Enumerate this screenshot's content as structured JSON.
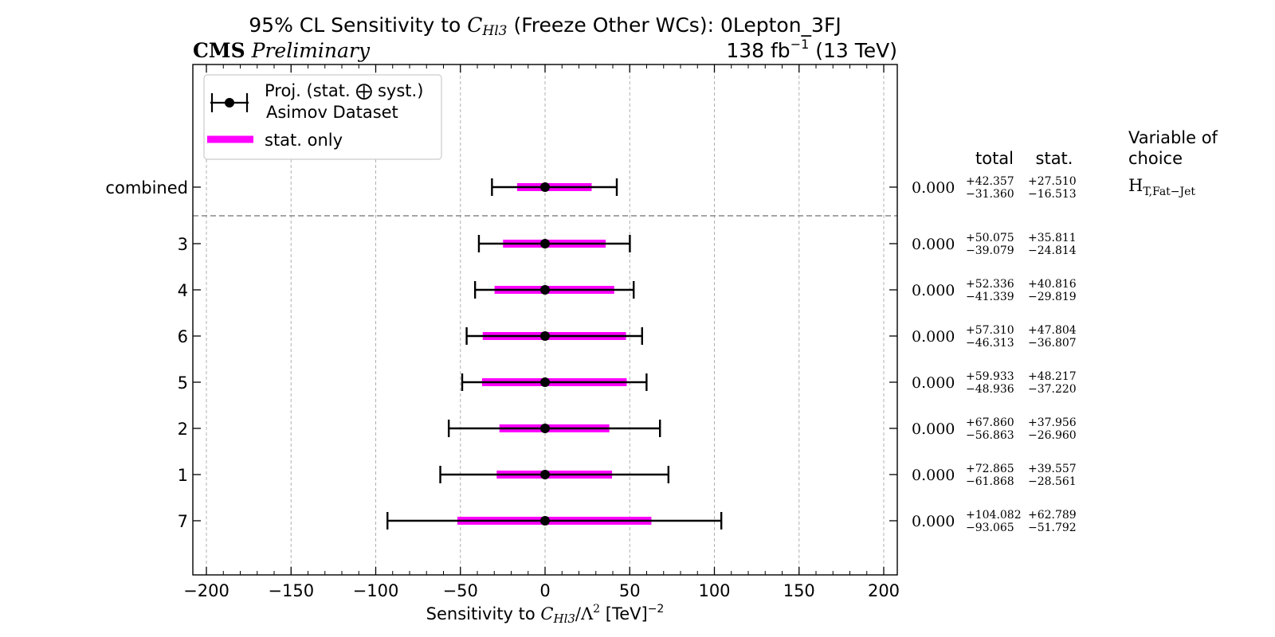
{
  "header": {
    "title_prefix": "95% CL Sensitivity to ",
    "title_var": "C",
    "title_var_sub": "Hl3",
    "title_suffix": " (Freeze Other WCs): 0Lepton_3FJ",
    "experiment": "CMS",
    "status": "Preliminary",
    "lumi": "138 fb",
    "lumi_sup": "−1",
    "energy": " (13 TeV)"
  },
  "legend": {
    "entry1_line1": "Proj. (stat. ⨁ syst.)",
    "entry1_line2": "Asimov Dataset",
    "entry2": "stat. only",
    "placement": "top-left"
  },
  "table": {
    "col_total": "total",
    "col_stat": "stat.",
    "col_var_line1": "Variable of",
    "col_var_line2": "choice",
    "variable": "H",
    "variable_sub": "T,Fat−Jet"
  },
  "colors": {
    "stat_band": "#ff00ff",
    "total_bar": "#000000",
    "grid": "#b0b0b0",
    "separator": "#888888"
  },
  "chart_data": {
    "type": "errorbar",
    "orientation": "horizontal",
    "xlabel_prefix": "Sensitivity to ",
    "xlabel_var": "C",
    "xlabel_var_sub": "Hl3",
    "xlabel_suffix": "/Λ",
    "xlabel_pow": "2",
    "xlabel_unit": " [TeV]",
    "xlabel_unit_pow": "−2",
    "xlim": [
      -208,
      208
    ],
    "xticks": [
      -200,
      -150,
      -100,
      -50,
      0,
      50,
      100,
      150,
      200
    ],
    "xtick_labels": [
      "−200",
      "−150",
      "−100",
      "−50",
      "0",
      "50",
      "100",
      "150",
      "200"
    ],
    "grid": true,
    "rows": [
      {
        "label": "combined",
        "central": "0.000",
        "value": 0,
        "total_up": 42.357,
        "total_down": -31.36,
        "stat_up": 27.51,
        "stat_down": -16.513,
        "total_up_text": "+42.357",
        "total_down_text": "−31.360",
        "stat_up_text": "+27.510",
        "stat_down_text": "−16.513"
      },
      {
        "label": "3",
        "central": "0.000",
        "value": 0,
        "total_up": 50.075,
        "total_down": -39.079,
        "stat_up": 35.811,
        "stat_down": -24.814,
        "total_up_text": "+50.075",
        "total_down_text": "−39.079",
        "stat_up_text": "+35.811",
        "stat_down_text": "−24.814"
      },
      {
        "label": "4",
        "central": "0.000",
        "value": 0,
        "total_up": 52.336,
        "total_down": -41.339,
        "stat_up": 40.816,
        "stat_down": -29.819,
        "total_up_text": "+52.336",
        "total_down_text": "−41.339",
        "stat_up_text": "+40.816",
        "stat_down_text": "−29.819"
      },
      {
        "label": "6",
        "central": "0.000",
        "value": 0,
        "total_up": 57.31,
        "total_down": -46.313,
        "stat_up": 47.804,
        "stat_down": -36.807,
        "total_up_text": "+57.310",
        "total_down_text": "−46.313",
        "stat_up_text": "+47.804",
        "stat_down_text": "−36.807"
      },
      {
        "label": "5",
        "central": "0.000",
        "value": 0,
        "total_up": 59.933,
        "total_down": -48.936,
        "stat_up": 48.217,
        "stat_down": -37.22,
        "total_up_text": "+59.933",
        "total_down_text": "−48.936",
        "stat_up_text": "+48.217",
        "stat_down_text": "−37.220"
      },
      {
        "label": "2",
        "central": "0.000",
        "value": 0,
        "total_up": 67.86,
        "total_down": -56.863,
        "stat_up": 37.956,
        "stat_down": -26.96,
        "total_up_text": "+67.860",
        "total_down_text": "−56.863",
        "stat_up_text": "+37.956",
        "stat_down_text": "−26.960"
      },
      {
        "label": "1",
        "central": "0.000",
        "value": 0,
        "total_up": 72.865,
        "total_down": -61.868,
        "stat_up": 39.557,
        "stat_down": -28.561,
        "total_up_text": "+72.865",
        "total_down_text": "−61.868",
        "stat_up_text": "+39.557",
        "stat_down_text": "−28.561"
      },
      {
        "label": "7",
        "central": "0.000",
        "value": 0,
        "total_up": 104.082,
        "total_down": -93.065,
        "stat_up": 62.789,
        "stat_down": -51.792,
        "total_up_text": "+104.082",
        "total_down_text": "−93.065",
        "stat_up_text": "+62.789",
        "stat_down_text": "−51.792"
      }
    ]
  }
}
